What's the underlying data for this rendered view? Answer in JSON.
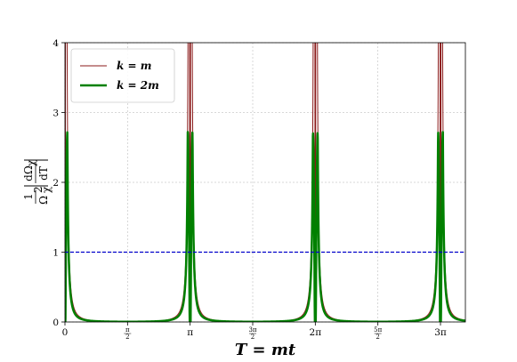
{
  "chart_data": {
    "type": "line",
    "xlabel": "T = mt",
    "ylabel_parts": {
      "num_left": "1",
      "den_left": "Ω",
      "den_left_exp": "2",
      "den_left_sub": "χ",
      "num_right": "dΩ",
      "num_right_sub": "χ",
      "den_right": "dT"
    },
    "xlim": [
      0,
      10.05
    ],
    "ylim": [
      0,
      4
    ],
    "x_ticks": [
      {
        "value": 0,
        "main": "0"
      },
      {
        "value": 1.5708,
        "num": "π",
        "den": "2"
      },
      {
        "value": 3.1416,
        "main": "π"
      },
      {
        "value": 4.7124,
        "num": "3π",
        "den": "2"
      },
      {
        "value": 6.2832,
        "main": "2π"
      },
      {
        "value": 7.854,
        "num": "5π",
        "den": "2"
      },
      {
        "value": 9.4248,
        "main": "3π"
      }
    ],
    "y_ticks": [
      "0",
      "1",
      "2",
      "3",
      "4"
    ],
    "grid": true,
    "legend_position": "top-left",
    "series": [
      {
        "name": "k = m",
        "color": "#8b1a1a",
        "line_width": 1,
        "style": "solid",
        "description_points": {
          "spike_centers": [
            0,
            3.1416,
            6.2832,
            9.4248
          ],
          "off_center_spike_offsets": [
            -0.08,
            0.08
          ],
          "exceeds_ylim": true
        }
      },
      {
        "name": "k = 2m",
        "color": "#008000",
        "line_width": 2.5,
        "style": "solid",
        "peak_value": 2.72,
        "peak_offsets": [
          -0.06,
          0.06
        ],
        "spike_centers": [
          0,
          3.1416,
          6.2832,
          9.4248
        ]
      }
    ],
    "reference_line": {
      "y": 1,
      "color": "#0000cc",
      "style": "dashed"
    }
  }
}
